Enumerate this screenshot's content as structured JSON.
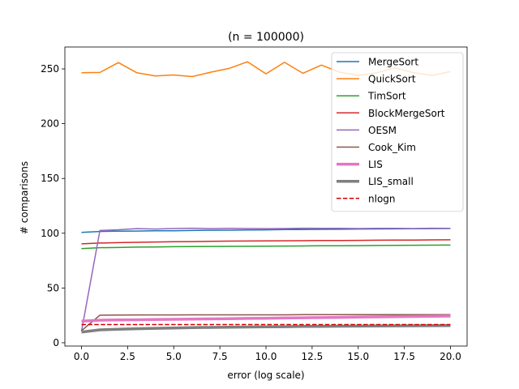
{
  "chart_data": {
    "type": "line",
    "title": "(n = 100000)",
    "xlabel": "error (log scale)",
    "ylabel": "# comparisons",
    "xlim": [
      -0.9,
      20.9
    ],
    "ylim": [
      -3,
      270
    ],
    "xticks": [
      0.0,
      2.5,
      5.0,
      7.5,
      10.0,
      12.5,
      15.0,
      17.5,
      20.0
    ],
    "xtick_labels": [
      "0.0",
      "2.5",
      "5.0",
      "7.5",
      "10.0",
      "12.5",
      "15.0",
      "17.5",
      "20.0"
    ],
    "yticks": [
      0,
      50,
      100,
      150,
      200,
      250
    ],
    "ytick_labels": [
      "0",
      "50",
      "100",
      "150",
      "200",
      "250"
    ],
    "grid": false,
    "legend_position": "top-right",
    "x": [
      0,
      1,
      2,
      3,
      4,
      5,
      6,
      7,
      8,
      9,
      10,
      11,
      12,
      13,
      14,
      15,
      16,
      17,
      18,
      19,
      20
    ],
    "series": [
      {
        "name": "MergeSort",
        "color": "#1f77b4",
        "style": "solid",
        "width": 1.5,
        "values": [
          100.8,
          101.6,
          101.8,
          102.0,
          102.2,
          102.3,
          102.5,
          102.7,
          102.8,
          103.0,
          103.1,
          103.3,
          103.4,
          103.5,
          103.6,
          103.8,
          103.9,
          104.0,
          104.1,
          104.2,
          104.3
        ]
      },
      {
        "name": "QuickSort",
        "color": "#ff7f0e",
        "style": "solid",
        "width": 1.5,
        "values": [
          246.5,
          246.8,
          255.8,
          246.5,
          243.5,
          244.5,
          243.0,
          247.0,
          250.5,
          256.5,
          245.5,
          256.0,
          246.0,
          253.5,
          247.0,
          244.0,
          246.5,
          251.0,
          246.5,
          244.0,
          247.5
        ]
      },
      {
        "name": "TimSort",
        "color": "#2ca02c",
        "style": "solid",
        "width": 1.5,
        "values": [
          86.0,
          86.8,
          87.0,
          87.3,
          87.5,
          87.7,
          87.8,
          87.9,
          88.0,
          88.1,
          88.2,
          88.3,
          88.4,
          88.5,
          88.6,
          88.7,
          88.8,
          88.9,
          89.0,
          89.1,
          89.2
        ]
      },
      {
        "name": "BlockMergeSort",
        "color": "#d62728",
        "style": "solid",
        "width": 1.5,
        "values": [
          90.3,
          91.0,
          91.4,
          91.7,
          92.0,
          92.2,
          92.4,
          92.6,
          92.8,
          92.9,
          93.0,
          93.1,
          93.2,
          93.3,
          93.4,
          93.5,
          93.6,
          93.7,
          93.8,
          93.9,
          94.0
        ]
      },
      {
        "name": "OESM",
        "color": "#9467bd",
        "style": "solid",
        "width": 1.5,
        "values": [
          10.5,
          102.5,
          103.2,
          104.2,
          103.8,
          104.3,
          104.6,
          104.2,
          104.4,
          104.3,
          104.2,
          104.3,
          104.6,
          104.5,
          104.4,
          104.3,
          104.4,
          104.4,
          104.3,
          104.6,
          104.4
        ]
      },
      {
        "name": "Cook_Kim",
        "color": "#8c564b",
        "style": "solid",
        "width": 1.5,
        "values": [
          11.0,
          25.2,
          25.3,
          25.4,
          25.4,
          25.4,
          25.5,
          25.5,
          25.5,
          25.5,
          25.5,
          25.5,
          25.6,
          25.6,
          25.6,
          25.6,
          25.6,
          25.7,
          25.7,
          25.7,
          25.7
        ]
      },
      {
        "name": "LIS",
        "color": "#e377c2",
        "style": "solid",
        "width": 3.5,
        "values": [
          19.8,
          20.6,
          20.8,
          21.0,
          21.2,
          21.4,
          21.6,
          21.8,
          22.0,
          22.2,
          22.4,
          22.6,
          22.8,
          23.0,
          23.2,
          23.4,
          23.6,
          23.8,
          24.0,
          24.2,
          24.4
        ]
      },
      {
        "name": "LIS_small",
        "color": "#7f7f7f",
        "style": "solid",
        "width": 3.5,
        "values": [
          9.8,
          11.8,
          12.3,
          12.8,
          13.2,
          13.5,
          13.8,
          14.0,
          14.2,
          14.4,
          14.5,
          14.7,
          14.9,
          15.0,
          15.1,
          15.2,
          15.3,
          15.4,
          15.5,
          15.6,
          15.7
        ]
      },
      {
        "name": "nlogn",
        "color": "#d00000",
        "style": "dashed",
        "width": 1.5,
        "values": [
          16.6,
          16.6,
          16.6,
          16.6,
          16.6,
          16.6,
          16.6,
          16.6,
          16.6,
          16.6,
          16.6,
          16.6,
          16.6,
          16.6,
          16.6,
          16.6,
          16.6,
          16.6,
          16.6,
          16.6,
          16.6
        ]
      }
    ]
  }
}
